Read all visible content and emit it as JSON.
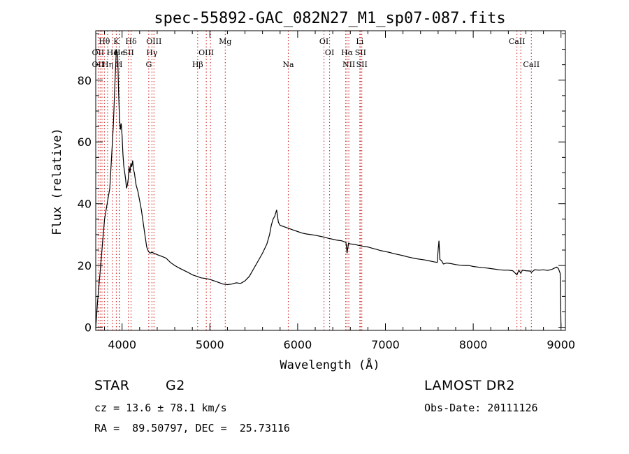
{
  "chart_data": {
    "type": "line",
    "title": "spec-55892-GAC_082N27_M1_sp07-087.fits",
    "xlabel": "Wavelength (Å)",
    "ylabel": "Flux (relative)",
    "xlim": [
      3700,
      9050
    ],
    "ylim": [
      -1,
      96
    ],
    "x_ticks": [
      4000,
      5000,
      6000,
      7000,
      8000,
      9000
    ],
    "y_ticks": [
      0,
      20,
      40,
      60,
      80
    ],
    "grid": false,
    "series": [
      {
        "x": [
          3700,
          3720,
          3750,
          3780,
          3800,
          3830,
          3860,
          3880,
          3900,
          3920,
          3935,
          3950,
          3960,
          3970,
          3980,
          3990,
          4000,
          4010,
          4020,
          4030,
          4040,
          4050,
          4060,
          4070,
          4080,
          4090,
          4100,
          4110,
          4120,
          4130,
          4140,
          4150,
          4160,
          4180,
          4200,
          4220,
          4240,
          4260,
          4280,
          4300,
          4320,
          4340,
          4360,
          4400,
          4450,
          4500,
          4550,
          4600,
          4650,
          4700,
          4750,
          4800,
          4850,
          4900,
          4950,
          5000,
          5050,
          5100,
          5150,
          5200,
          5250,
          5300,
          5350,
          5400,
          5450,
          5500,
          5550,
          5600,
          5650,
          5680,
          5700,
          5720,
          5740,
          5760,
          5780,
          5800,
          5850,
          5900,
          5950,
          6000,
          6050,
          6100,
          6150,
          6200,
          6250,
          6300,
          6350,
          6400,
          6450,
          6500,
          6550,
          6563,
          6580,
          6600,
          6650,
          6700,
          6750,
          6800,
          6850,
          6900,
          6950,
          7000,
          7050,
          7100,
          7150,
          7200,
          7250,
          7300,
          7350,
          7400,
          7450,
          7500,
          7550,
          7590,
          7600,
          7610,
          7620,
          7640,
          7660,
          7700,
          7750,
          7800,
          7850,
          7900,
          7950,
          8000,
          8050,
          8100,
          8150,
          8200,
          8250,
          8300,
          8350,
          8400,
          8450,
          8498,
          8520,
          8542,
          8560,
          8600,
          8650,
          8662,
          8700,
          8750,
          8800,
          8850,
          8900,
          8950,
          8970,
          8990,
          9000
        ],
        "y": [
          0,
          8,
          18,
          28,
          35,
          40,
          45,
          55,
          65,
          80,
          90,
          88,
          76,
          68,
          64,
          66,
          62,
          56,
          52,
          50,
          48,
          45,
          46,
          48,
          52,
          50,
          53,
          52,
          54,
          51,
          50,
          48,
          46,
          44,
          41,
          38,
          34,
          30,
          26,
          24.5,
          24,
          24.3,
          24,
          23.5,
          23,
          22.4,
          21,
          20,
          19.2,
          18.5,
          17.8,
          17,
          16.5,
          16,
          15.8,
          15.5,
          15,
          14.5,
          14,
          13.8,
          14,
          14.4,
          14.2,
          15,
          16.5,
          19,
          21.5,
          24,
          27,
          30,
          33,
          35,
          36,
          38,
          34,
          33,
          32.5,
          32,
          31.5,
          31,
          30.5,
          30.2,
          30,
          29.8,
          29.5,
          29.2,
          28.8,
          28.5,
          28.2,
          28,
          27.5,
          24,
          27.2,
          27,
          26.8,
          26.5,
          26.2,
          26,
          25.6,
          25.2,
          24.8,
          24.5,
          24.2,
          23.8,
          23.5,
          23.2,
          22.8,
          22.5,
          22.2,
          22,
          21.8,
          21.5,
          21.2,
          21,
          25,
          28,
          22,
          21.5,
          20.5,
          20.8,
          20.6,
          20.3,
          20.1,
          20,
          20,
          19.7,
          19.5,
          19.3,
          19.2,
          19,
          18.8,
          18.6,
          18.5,
          18.5,
          18.3,
          17,
          18.5,
          17.5,
          18.5,
          18.3,
          18.2,
          17.8,
          18.6,
          18.5,
          18.6,
          18.4,
          18.8,
          19.5,
          19,
          17.5,
          0
        ]
      }
    ],
    "spectral_lines_top": [
      {
        "label": "Hθ",
        "x": 3798,
        "row": 1
      },
      {
        "label": "K",
        "x": 3934,
        "row": 1
      },
      {
        "label": "Hδ",
        "x": 4102,
        "row": 1
      },
      {
        "label": "OIII",
        "x": 4363,
        "row": 1
      },
      {
        "label": "Mg",
        "x": 5175,
        "row": 1
      },
      {
        "label": "OI",
        "x": 6300,
        "row": 1
      },
      {
        "label": "Li",
        "x": 6708,
        "row": 1
      },
      {
        "label": "CaII",
        "x": 8498,
        "row": 1
      },
      {
        "label": "OII",
        "x": 3727,
        "row": 2
      },
      {
        "label": "He",
        "x": 3889,
        "row": 2
      },
      {
        "label": "He",
        "x": 3970,
        "row": 2
      },
      {
        "label": "SII",
        "x": 4072,
        "row": 2
      },
      {
        "label": "Hγ",
        "x": 4340,
        "row": 2
      },
      {
        "label": "OIII",
        "x": 4959,
        "row": 2
      },
      {
        "label": "OI",
        "x": 6364,
        "row": 2
      },
      {
        "label": "Hα",
        "x": 6563,
        "row": 2
      },
      {
        "label": "SII",
        "x": 6716,
        "row": 2
      },
      {
        "label": "OII",
        "x": 3727,
        "row": 3
      },
      {
        "label": "Hη",
        "x": 3835,
        "row": 3
      },
      {
        "label": "H",
        "x": 3968,
        "row": 3
      },
      {
        "label": "G",
        "x": 4304,
        "row": 3
      },
      {
        "label": "Hβ",
        "x": 4861,
        "row": 3
      },
      {
        "label": "Na",
        "x": 5893,
        "row": 3
      },
      {
        "label": "NII",
        "x": 6583,
        "row": 3
      },
      {
        "label": "SII",
        "x": 6731,
        "row": 3
      },
      {
        "label": "CaII",
        "x": 8662,
        "row": 3
      }
    ],
    "line_markers_x": [
      3727,
      3750,
      3771,
      3798,
      3835,
      3889,
      3934,
      3968,
      3970,
      4072,
      4102,
      4304,
      4340,
      4363,
      4861,
      4959,
      5007,
      5175,
      5893,
      6300,
      6364,
      6548,
      6563,
      6583,
      6708,
      6716,
      6731,
      8498,
      8542,
      8662
    ]
  },
  "footer": {
    "object_class": "STAR",
    "subclass": "G2",
    "survey": "LAMOST DR2",
    "redshift_text": "cz = 13.6 ± 78.1 km/s",
    "obs_date_text": "Obs-Date: 20111126",
    "coords_text": "RA =  89.50797, DEC =  25.73116"
  }
}
